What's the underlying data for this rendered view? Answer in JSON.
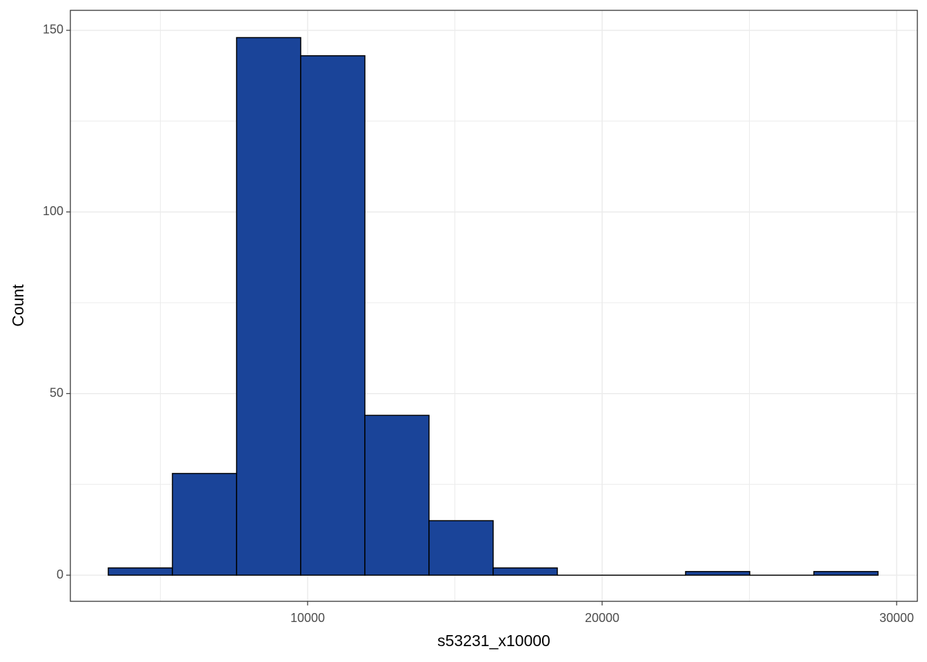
{
  "chart_data": {
    "type": "histogram",
    "x_label": "s53231_x10000",
    "y_label": "Count",
    "bins": [
      3232,
      5410,
      7588,
      9766,
      11944,
      14122,
      16300,
      18478,
      20656,
      22834,
      25012,
      27190,
      29368
    ],
    "counts": [
      2,
      28,
      148,
      143,
      44,
      15,
      2,
      0,
      0,
      1,
      0,
      1
    ],
    "color": "#1a4499",
    "edge_color": "#000000",
    "xlim": [
      1944,
      30703
    ],
    "ylim": [
      -7.2,
      155.5
    ],
    "xticks": [
      10000,
      20000,
      30000
    ],
    "yticks": [
      0,
      50,
      100,
      150
    ],
    "x_minor_grid": [
      5000,
      15000,
      25000
    ],
    "y_minor_grid": [
      25,
      75,
      125
    ],
    "grid": true
  }
}
